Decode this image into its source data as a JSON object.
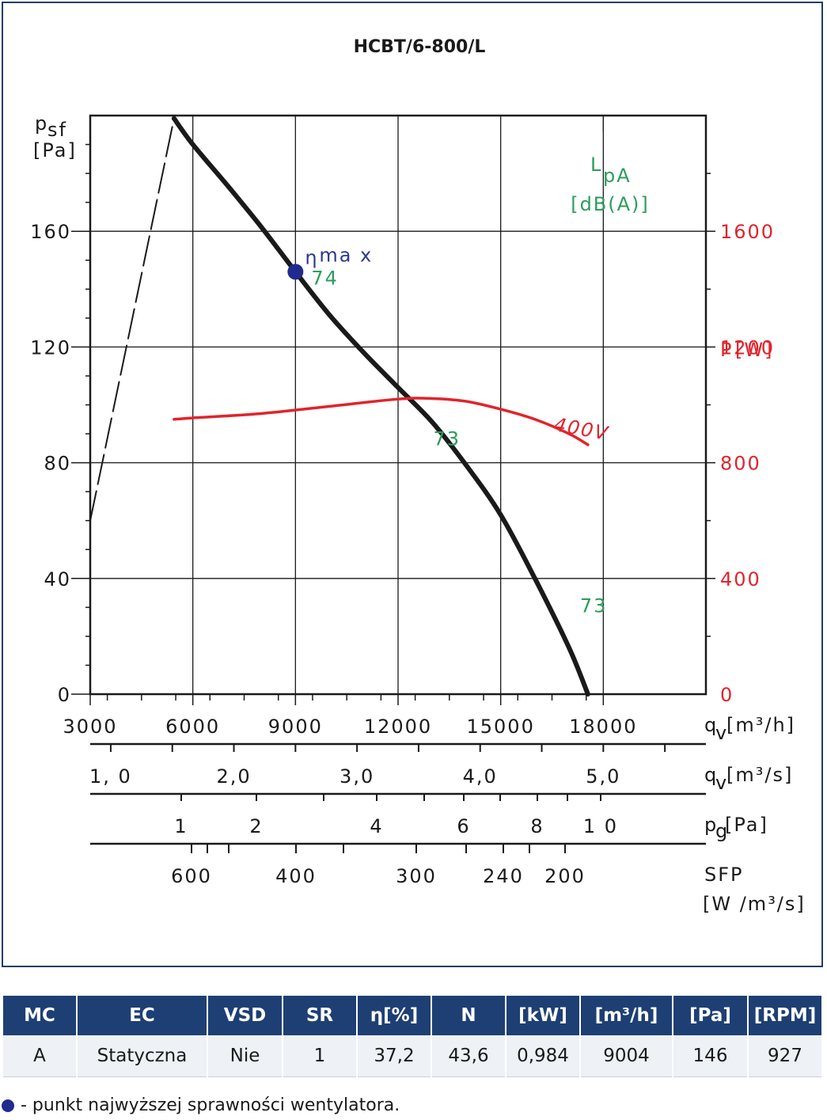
{
  "chart_data": {
    "type": "line",
    "title": "HCBT/6-800/L",
    "y_left": {
      "label": "p",
      "label_sub": "sf",
      "unit": "[Pa]",
      "range": [
        0,
        200
      ],
      "ticks": [
        0,
        40,
        80,
        120,
        160
      ]
    },
    "y_right": {
      "label": "P",
      "unit": "[W]",
      "range": [
        0,
        2000
      ],
      "ticks": [
        0,
        400,
        800,
        1200,
        1600
      ]
    },
    "x": {
      "label": "q",
      "label_sub": "v",
      "unit": "[m³/h]",
      "range": [
        3000,
        21000
      ],
      "ticks": [
        3000,
        6000,
        9000,
        12000,
        15000,
        18000
      ],
      "tick_labels": [
        "3000",
        "6000",
        "9000",
        "12000",
        "15000",
        "18000"
      ]
    },
    "scales": [
      {
        "label": "q",
        "label_sub": "v",
        "unit": "[m³/s]",
        "ticks": [
          1.0,
          2.0,
          3.0,
          4.0,
          5.0
        ],
        "tick_labels": [
          "1, 0",
          "2,0",
          "3,0",
          "4,0",
          "5,0"
        ]
      },
      {
        "label": "p",
        "label_sub": "g",
        "unit": "[Pa]",
        "ticks": [
          1,
          2,
          4,
          6,
          8,
          10
        ],
        "tick_labels": [
          "1",
          "2",
          "4",
          "6",
          "8",
          "1 0"
        ]
      },
      {
        "label": "SFP",
        "unit": "[W /m³/s]",
        "ticks": [
          600,
          400,
          300,
          240,
          200
        ],
        "tick_labels": [
          "600",
          "400",
          "300",
          "240",
          "200"
        ]
      }
    ],
    "lpa_label": {
      "text": "L",
      "sub": "pA",
      "unit": "[dB(A)]"
    },
    "series": [
      {
        "id": "fan-curve",
        "axis": "left",
        "color": "#1a1a1a",
        "x": [
          5450,
          6000,
          7000,
          8000,
          9000,
          10000,
          11000,
          12000,
          13000,
          14000,
          15000,
          16000,
          17000,
          17550
        ],
        "y": [
          199,
          190,
          176,
          161.5,
          146,
          131,
          118,
          106,
          94,
          79,
          62,
          40,
          16,
          0
        ]
      },
      {
        "id": "unstable-branch",
        "axis": "left",
        "dashed": true,
        "color": "#1a1a1a",
        "x": [
          3000,
          5450
        ],
        "y": [
          60,
          199
        ]
      },
      {
        "id": "power-curve",
        "axis": "right",
        "color": "#e0242c",
        "label": "400V",
        "x": [
          5450,
          6000,
          8000,
          10000,
          12000,
          13000,
          14000,
          15000,
          16000,
          17000,
          17550
        ],
        "y": [
          950,
          955,
          970,
          995,
          1020,
          1022,
          1012,
          985,
          950,
          900,
          862
        ]
      }
    ],
    "annotations": [
      {
        "text": "74",
        "x": 9000,
        "y": 146,
        "color": "green"
      },
      {
        "text": "73",
        "x": 14000,
        "y": 79,
        "color": "green"
      },
      {
        "text": "73",
        "x": 17550,
        "y": 13,
        "color": "green"
      }
    ],
    "marker": {
      "label": "η",
      "label_sup": "ma x",
      "x": 9000,
      "y": 146,
      "color": "#1f2b8e"
    },
    "grid": true
  },
  "table": {
    "headers": [
      "MC",
      "EC",
      "VSD",
      "SR",
      "η[%]",
      "N",
      "[kW]",
      "[m³/h]",
      "[Pa]",
      "[RPM]"
    ],
    "row": [
      "A",
      "Statyczna",
      "Nie",
      "1",
      "37,2",
      "43,6",
      "0,984",
      "9004",
      "146",
      "927"
    ]
  },
  "legend_note": "- punkt najwyższej sprawności wentylatora."
}
